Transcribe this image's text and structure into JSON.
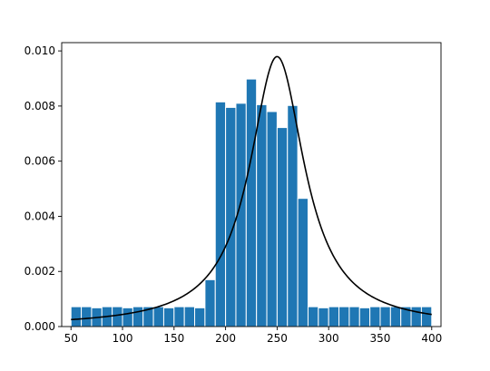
{
  "chart_data": {
    "type": "bar",
    "title": "",
    "xlabel": "",
    "ylabel": "",
    "xlim": [
      41,
      409
    ],
    "ylim": [
      0,
      0.0103
    ],
    "x_ticks": [
      50,
      100,
      150,
      200,
      250,
      300,
      350,
      400
    ],
    "x_tick_labels": [
      "50",
      "100",
      "150",
      "200",
      "250",
      "300",
      "350",
      "400"
    ],
    "y_ticks": [
      0.0,
      0.002,
      0.004,
      0.006,
      0.008,
      0.01
    ],
    "y_tick_labels": [
      "0.000",
      "0.002",
      "0.004",
      "0.006",
      "0.008",
      "0.010"
    ],
    "bin_edges": [
      50,
      60,
      70,
      80,
      90,
      100,
      110,
      120,
      130,
      140,
      150,
      160,
      170,
      180,
      190,
      200,
      210,
      220,
      230,
      240,
      250,
      260,
      270,
      280,
      290,
      300,
      310,
      320,
      330,
      340,
      350,
      360,
      370,
      380,
      390,
      400
    ],
    "values": [
      0.00072,
      0.00072,
      0.00068,
      0.00072,
      0.00072,
      0.00068,
      0.00072,
      0.00072,
      0.00072,
      0.00068,
      0.00072,
      0.00072,
      0.00068,
      0.0017,
      0.00815,
      0.00795,
      0.0081,
      0.00898,
      0.00805,
      0.0078,
      0.00722,
      0.00802,
      0.00465,
      0.00072,
      0.00068,
      0.00072,
      0.00072,
      0.00072,
      0.00068,
      0.00072,
      0.00072,
      0.00072,
      0.00072,
      0.00072,
      0.00072
    ],
    "curve": {
      "type": "line",
      "distribution": "cauchy",
      "location": 250,
      "scale": 32.5,
      "x_range": [
        50,
        400
      ]
    },
    "colors": {
      "bars": "#1f77b4",
      "bar_edge": "#ffffff",
      "curve": "#000000",
      "axes": "#000000"
    },
    "grid": false,
    "legend": "none"
  }
}
